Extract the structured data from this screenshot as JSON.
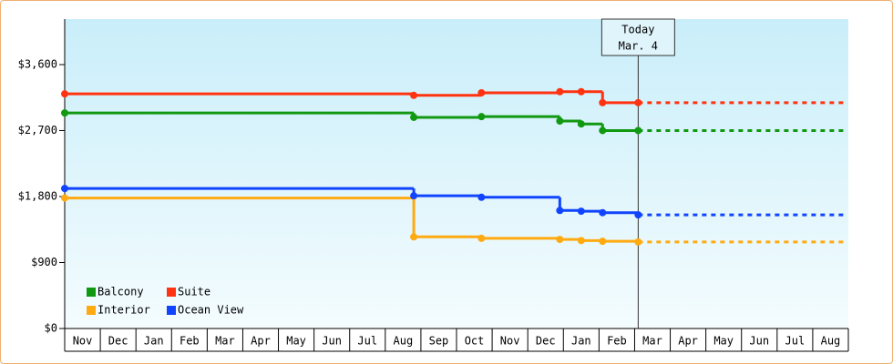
{
  "chart_data": {
    "type": "step-line",
    "xlim": [
      0,
      22
    ],
    "xticks": [
      {
        "value": 0.5,
        "label": "Nov"
      },
      {
        "value": 1.5,
        "label": "Dec"
      },
      {
        "value": 2.5,
        "label": "Jan"
      },
      {
        "value": 3.5,
        "label": "Feb"
      },
      {
        "value": 4.5,
        "label": "Mar"
      },
      {
        "value": 5.5,
        "label": "Apr"
      },
      {
        "value": 6.5,
        "label": "May"
      },
      {
        "value": 7.5,
        "label": "Jun"
      },
      {
        "value": 8.5,
        "label": "Jul"
      },
      {
        "value": 9.5,
        "label": "Aug"
      },
      {
        "value": 10.5,
        "label": "Sep"
      },
      {
        "value": 11.5,
        "label": "Oct"
      },
      {
        "value": 12.5,
        "label": "Nov"
      },
      {
        "value": 13.5,
        "label": "Dec"
      },
      {
        "value": 14.5,
        "label": "Jan"
      },
      {
        "value": 15.5,
        "label": "Feb"
      },
      {
        "value": 16.5,
        "label": "Mar"
      },
      {
        "value": 17.5,
        "label": "Apr"
      },
      {
        "value": 18.5,
        "label": "May"
      },
      {
        "value": 19.5,
        "label": "Jun"
      },
      {
        "value": 20.5,
        "label": "Jul"
      },
      {
        "value": 21.5,
        "label": "Aug"
      }
    ],
    "ylim": [
      0,
      4220
    ],
    "yticks": [
      {
        "value": 0,
        "label": "$0"
      },
      {
        "value": 900,
        "label": "$900"
      },
      {
        "value": 1800,
        "label": "$1,800"
      },
      {
        "value": 2700,
        "label": "$2,700"
      },
      {
        "value": 3600,
        "label": "$3,600"
      }
    ],
    "x": [
      0,
      9.8,
      11.7,
      13.9,
      14.5,
      15.1,
      16.1
    ],
    "today": {
      "x": 16.1,
      "label": "Today",
      "date": "Mar. 4"
    },
    "series": [
      {
        "name": "Balcony",
        "color": "#119911",
        "values": [
          2940,
          2880,
          2890,
          2830,
          2790,
          2700,
          2700
        ]
      },
      {
        "name": "Suite",
        "color": "#ff3311",
        "values": [
          3200,
          3180,
          3215,
          3230,
          3230,
          3080,
          3080
        ]
      },
      {
        "name": "Interior",
        "color": "#ffaa11",
        "values": [
          1780,
          1250,
          1230,
          1215,
          1200,
          1190,
          1180
        ]
      },
      {
        "name": "Ocean View",
        "color": "#1144ff",
        "values": [
          1910,
          1810,
          1790,
          1610,
          1600,
          1580,
          1550
        ]
      }
    ]
  }
}
